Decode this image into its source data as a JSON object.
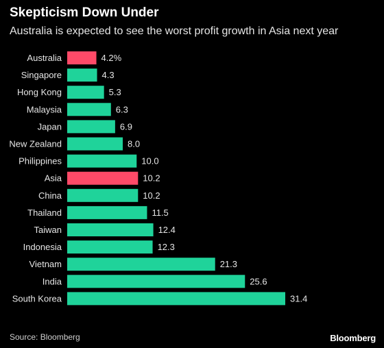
{
  "header": {
    "title": "Skepticism Down Under",
    "subtitle": "Australia is expected to see the worst profit growth in Asia next year"
  },
  "footer": {
    "source": "Source: Bloomberg",
    "brand": "Bloomberg"
  },
  "colors": {
    "highlight": "#ff4a68",
    "bar": "#1fd39a",
    "background": "#000000"
  },
  "chart_data": {
    "type": "bar",
    "orientation": "horizontal",
    "title": "Skepticism Down Under",
    "subtitle": "Australia is expected to see the worst profit growth in Asia next year",
    "categories": [
      "Australia",
      "Singapore",
      "Hong Kong",
      "Malaysia",
      "Japan",
      "New Zealand",
      "Philippines",
      "Asia",
      "China",
      "Thailand",
      "Taiwan",
      "Indonesia",
      "Vietnam",
      "India",
      "South Korea"
    ],
    "values": [
      4.2,
      4.3,
      5.3,
      6.3,
      6.9,
      8.0,
      10.0,
      10.2,
      10.2,
      11.5,
      12.4,
      12.3,
      21.3,
      25.6,
      31.4
    ],
    "value_labels": [
      "4.2%",
      "4.3",
      "5.3",
      "6.3",
      "6.9",
      "8.0",
      "10.0",
      "10.2",
      "10.2",
      "11.5",
      "12.4",
      "12.3",
      "21.3",
      "25.6",
      "31.4"
    ],
    "highlighted": [
      "Australia",
      "Asia"
    ],
    "xlim": [
      0,
      31.4
    ],
    "grid": false,
    "legend": "none"
  }
}
